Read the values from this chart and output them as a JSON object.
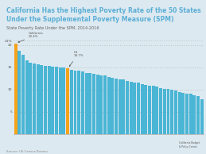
{
  "title_line1": "California Has the Highest Poverty Rate of the 50 States",
  "title_line2": "Under the Supplemental Poverty Measure (SPM)",
  "subtitle": "State Poverty Rate Under the SPM, 2014-2016",
  "source": "Source: US Census Bureau",
  "title_color": "#5bafd6",
  "subtitle_color": "#666666",
  "background_color": "#dde9f0",
  "bar_area_bg": "#dde9f0",
  "ylim": [
    0,
    22
  ],
  "ytick_labels": [
    "21%",
    "",
    "",
    "",
    "20",
    "",
    "",
    "",
    "",
    "15",
    "",
    "",
    "",
    "",
    "10",
    "",
    "",
    "",
    "",
    "5",
    "",
    "",
    "",
    "",
    ""
  ],
  "yticks_major": [
    21,
    20,
    15,
    10,
    5
  ],
  "california_value": 20.4,
  "us_value": 14.7,
  "us_bar_index": 14,
  "bar_color_default": "#4ab5d4",
  "bar_color_california": "#f5a31a",
  "bar_color_us": "#f5a31a",
  "annotation_color": "#555555",
  "values": [
    20.4,
    18.8,
    17.8,
    16.5,
    16.1,
    15.9,
    15.7,
    15.5,
    15.4,
    15.3,
    15.2,
    15.1,
    15.0,
    14.9,
    14.7,
    14.5,
    14.3,
    14.2,
    14.0,
    13.8,
    13.7,
    13.5,
    13.4,
    13.2,
    13.1,
    12.9,
    12.7,
    12.5,
    12.3,
    12.2,
    12.0,
    11.8,
    11.6,
    11.5,
    11.3,
    11.1,
    10.9,
    10.8,
    10.6,
    10.4,
    10.2,
    10.1,
    9.9,
    9.7,
    9.5,
    9.3,
    9.1,
    9.0,
    8.8,
    8.6,
    7.9
  ]
}
